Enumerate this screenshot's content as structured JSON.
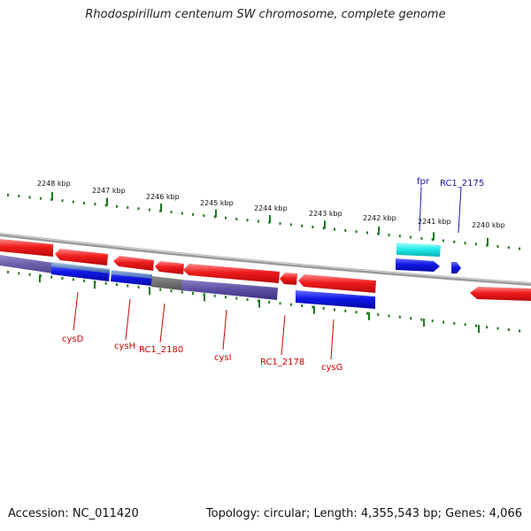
{
  "title": "Rhodospirillum centenum SW chromosome, complete genome",
  "footer": {
    "accession": "Accession: NC_011420",
    "topology": "Topology: circular; Length: 4,355,543 bp; Genes: 4,066"
  },
  "scale_labels": [
    "2248 kbp",
    "2247 kbp",
    "2246 kbp",
    "2245 kbp",
    "2244 kbp",
    "2243 kbp",
    "2242 kbp",
    "2241 kbp",
    "2240 kbp"
  ],
  "gene_labels_reverse": [
    "cysD",
    "cysH",
    "RC1_2180",
    "cysI",
    "RC1_2178",
    "cysG"
  ],
  "gene_labels_forward": [
    "fpr",
    "RC1_2175"
  ],
  "colors": {
    "reverse_gene": "#e8191a",
    "reverse_label": "#cc0000",
    "forward_gene": "#0a14e0",
    "forward_label": "#1a1aa0",
    "cyan_gene": "#18e6e6",
    "scale_tick": "#1c7a1c",
    "backbone": "#8a8a8a",
    "purple_feature": "#5a4ea0"
  }
}
